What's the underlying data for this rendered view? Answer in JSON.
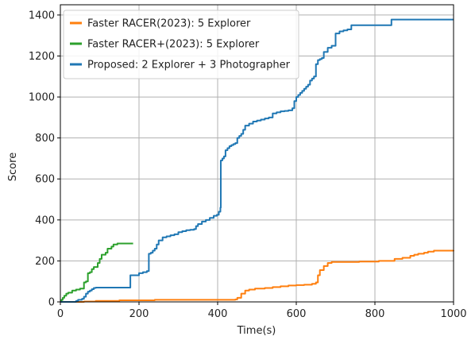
{
  "chart_data": {
    "type": "line",
    "title": "",
    "xlabel": "Time(s)",
    "ylabel": "Score",
    "xlim": [
      0,
      1000
    ],
    "ylim": [
      0,
      1450
    ],
    "x_ticks": [
      0,
      200,
      400,
      600,
      800,
      1000
    ],
    "y_ticks": [
      0,
      200,
      400,
      600,
      800,
      1000,
      1200,
      1400
    ],
    "grid": true,
    "legend_position": "top-left",
    "series": [
      {
        "name": "Faster RACER(2023): 5 Explorer",
        "color": "#ff7f0e",
        "step": true,
        "points": [
          [
            0,
            0
          ],
          [
            60,
            2
          ],
          [
            90,
            5
          ],
          [
            150,
            8
          ],
          [
            240,
            10
          ],
          [
            300,
            10
          ],
          [
            445,
            12
          ],
          [
            450,
            20
          ],
          [
            460,
            40
          ],
          [
            470,
            55
          ],
          [
            480,
            60
          ],
          [
            495,
            65
          ],
          [
            520,
            68
          ],
          [
            540,
            72
          ],
          [
            560,
            76
          ],
          [
            580,
            80
          ],
          [
            600,
            82
          ],
          [
            620,
            84
          ],
          [
            640,
            88
          ],
          [
            650,
            95
          ],
          [
            655,
            130
          ],
          [
            660,
            155
          ],
          [
            670,
            175
          ],
          [
            680,
            190
          ],
          [
            690,
            195
          ],
          [
            760,
            197
          ],
          [
            810,
            200
          ],
          [
            850,
            210
          ],
          [
            870,
            215
          ],
          [
            890,
            225
          ],
          [
            900,
            230
          ],
          [
            910,
            235
          ],
          [
            925,
            240
          ],
          [
            935,
            245
          ],
          [
            950,
            250
          ],
          [
            1000,
            252
          ]
        ]
      },
      {
        "name": "Faster RACER+(2023): 5 Explorer",
        "color": "#2ca02c",
        "step": true,
        "points": [
          [
            0,
            0
          ],
          [
            3,
            10
          ],
          [
            6,
            20
          ],
          [
            10,
            30
          ],
          [
            15,
            40
          ],
          [
            20,
            45
          ],
          [
            30,
            55
          ],
          [
            40,
            60
          ],
          [
            50,
            65
          ],
          [
            60,
            95
          ],
          [
            65,
            100
          ],
          [
            70,
            140
          ],
          [
            75,
            145
          ],
          [
            80,
            160
          ],
          [
            85,
            170
          ],
          [
            95,
            190
          ],
          [
            100,
            210
          ],
          [
            105,
            230
          ],
          [
            115,
            240
          ],
          [
            120,
            260
          ],
          [
            130,
            270
          ],
          [
            135,
            280
          ],
          [
            145,
            285
          ],
          [
            185,
            285
          ]
        ]
      },
      {
        "name": "Proposed: 2 Explorer + 3 Photographer",
        "color": "#1f77b4",
        "step": true,
        "points": [
          [
            0,
            0
          ],
          [
            40,
            5
          ],
          [
            45,
            10
          ],
          [
            55,
            15
          ],
          [
            60,
            25
          ],
          [
            65,
            40
          ],
          [
            70,
            50
          ],
          [
            75,
            55
          ],
          [
            80,
            62
          ],
          [
            85,
            68
          ],
          [
            90,
            70
          ],
          [
            120,
            70
          ],
          [
            145,
            70
          ],
          [
            150,
            70
          ],
          [
            175,
            70
          ],
          [
            178,
            130
          ],
          [
            200,
            140
          ],
          [
            210,
            145
          ],
          [
            220,
            150
          ],
          [
            225,
            235
          ],
          [
            230,
            240
          ],
          [
            235,
            250
          ],
          [
            240,
            260
          ],
          [
            245,
            280
          ],
          [
            250,
            300
          ],
          [
            260,
            315
          ],
          [
            270,
            320
          ],
          [
            280,
            325
          ],
          [
            290,
            330
          ],
          [
            300,
            340
          ],
          [
            310,
            345
          ],
          [
            320,
            350
          ],
          [
            330,
            352
          ],
          [
            340,
            355
          ],
          [
            345,
            370
          ],
          [
            350,
            380
          ],
          [
            360,
            392
          ],
          [
            370,
            400
          ],
          [
            380,
            410
          ],
          [
            390,
            420
          ],
          [
            398,
            425
          ],
          [
            403,
            440
          ],
          [
            407,
            460
          ],
          [
            408,
            690
          ],
          [
            412,
            700
          ],
          [
            416,
            710
          ],
          [
            420,
            740
          ],
          [
            425,
            750
          ],
          [
            430,
            760
          ],
          [
            435,
            765
          ],
          [
            440,
            770
          ],
          [
            445,
            775
          ],
          [
            450,
            800
          ],
          [
            455,
            810
          ],
          [
            460,
            820
          ],
          [
            465,
            840
          ],
          [
            470,
            860
          ],
          [
            480,
            870
          ],
          [
            490,
            880
          ],
          [
            500,
            885
          ],
          [
            510,
            890
          ],
          [
            520,
            895
          ],
          [
            530,
            900
          ],
          [
            540,
            920
          ],
          [
            550,
            925
          ],
          [
            560,
            930
          ],
          [
            570,
            932
          ],
          [
            580,
            935
          ],
          [
            590,
            945
          ],
          [
            595,
            980
          ],
          [
            600,
            1000
          ],
          [
            605,
            1010
          ],
          [
            610,
            1020
          ],
          [
            615,
            1030
          ],
          [
            620,
            1040
          ],
          [
            625,
            1050
          ],
          [
            630,
            1060
          ],
          [
            635,
            1080
          ],
          [
            640,
            1090
          ],
          [
            645,
            1100
          ],
          [
            650,
            1160
          ],
          [
            655,
            1180
          ],
          [
            660,
            1185
          ],
          [
            665,
            1190
          ],
          [
            670,
            1220
          ],
          [
            680,
            1240
          ],
          [
            690,
            1250
          ],
          [
            700,
            1310
          ],
          [
            710,
            1320
          ],
          [
            720,
            1325
          ],
          [
            730,
            1330
          ],
          [
            740,
            1350
          ],
          [
            800,
            1350
          ],
          [
            840,
            1350
          ],
          [
            842,
            1378
          ],
          [
            1000,
            1378
          ]
        ]
      }
    ]
  }
}
